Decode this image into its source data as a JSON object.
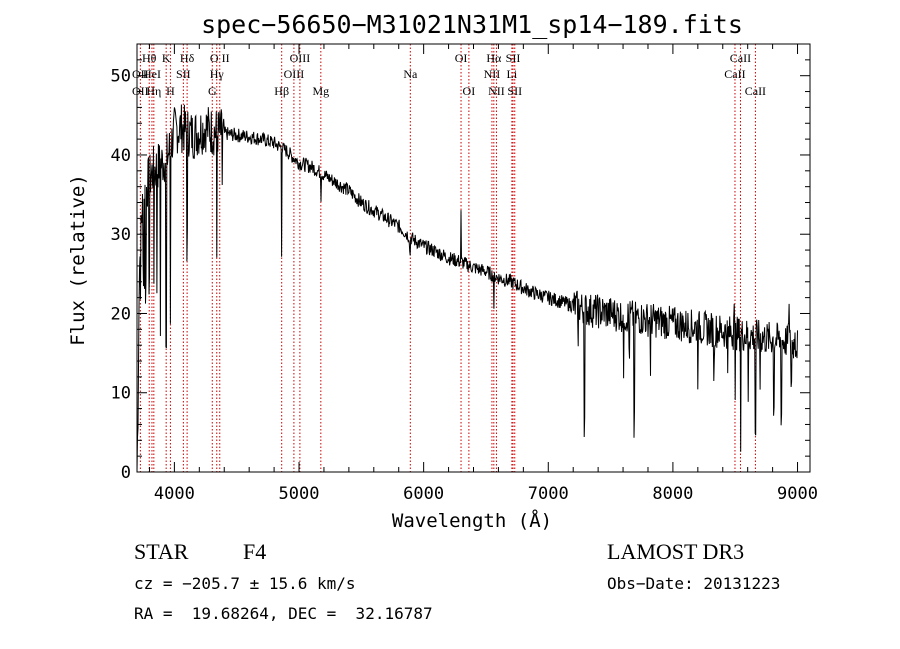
{
  "chart_data": {
    "type": "line",
    "title": "spec−56650−M31021N31M1_sp14−189.fits",
    "xlabel": "Wavelength (Å)",
    "ylabel": "Flux (relative)",
    "xlim": [
      3700,
      9100
    ],
    "ylim": [
      0,
      54
    ],
    "xticks": [
      4000,
      5000,
      6000,
      7000,
      8000,
      9000
    ],
    "yticks": [
      0,
      10,
      20,
      30,
      40,
      50
    ],
    "xtick_labels": [
      "4000",
      "5000",
      "6000",
      "7000",
      "8000",
      "9000"
    ],
    "ytick_labels": [
      "0",
      "10",
      "20",
      "30",
      "40",
      "50"
    ],
    "continuum": [
      [
        3700,
        0
      ],
      [
        3708,
        8
      ],
      [
        3715,
        20
      ],
      [
        3725,
        31
      ],
      [
        3750,
        34
      ],
      [
        3775,
        36
      ],
      [
        3800,
        37
      ],
      [
        3830,
        38
      ],
      [
        3860,
        38.5
      ],
      [
        3900,
        39
      ],
      [
        3950,
        40
      ],
      [
        4000,
        43
      ],
      [
        4050,
        43.5
      ],
      [
        4100,
        43
      ],
      [
        4150,
        42.5
      ],
      [
        4200,
        43
      ],
      [
        4250,
        43.5
      ],
      [
        4300,
        43
      ],
      [
        4400,
        42.7
      ],
      [
        4500,
        42.5
      ],
      [
        4600,
        42.3
      ],
      [
        4700,
        42
      ],
      [
        4800,
        41.5
      ],
      [
        4900,
        40.5
      ],
      [
        5000,
        39
      ],
      [
        5100,
        38.5
      ],
      [
        5200,
        37.5
      ],
      [
        5300,
        36.5
      ],
      [
        5400,
        35.5
      ],
      [
        5500,
        34
      ],
      [
        5600,
        33
      ],
      [
        5700,
        32
      ],
      [
        5800,
        31
      ],
      [
        5900,
        29.5
      ],
      [
        6000,
        28.5
      ],
      [
        6100,
        27.8
      ],
      [
        6200,
        27
      ],
      [
        6300,
        26.5
      ],
      [
        6400,
        25.8
      ],
      [
        6500,
        25.3
      ],
      [
        6600,
        24.5
      ],
      [
        6700,
        24
      ],
      [
        6800,
        23.2
      ],
      [
        6900,
        22.5
      ],
      [
        7000,
        22
      ],
      [
        7100,
        21.5
      ],
      [
        7200,
        21
      ],
      [
        7300,
        20.5
      ],
      [
        7500,
        20
      ],
      [
        7700,
        19.5
      ],
      [
        7900,
        19
      ],
      [
        8100,
        18.5
      ],
      [
        8300,
        18
      ],
      [
        8500,
        17.5
      ],
      [
        8700,
        17
      ],
      [
        8900,
        16.5
      ],
      [
        9000,
        16
      ]
    ],
    "absorption_features": [
      [
        3727,
        12
      ],
      [
        3750,
        8
      ],
      [
        3760,
        10
      ],
      [
        3770,
        12
      ],
      [
        3798,
        12
      ],
      [
        3835,
        14
      ],
      [
        3860,
        15
      ],
      [
        3889,
        20
      ],
      [
        3934,
        25
      ],
      [
        3968,
        22
      ],
      [
        4102,
        14
      ],
      [
        4340,
        16
      ],
      [
        4383,
        6
      ],
      [
        4861,
        13
      ],
      [
        5175,
        3
      ],
      [
        5890,
        2
      ],
      [
        6563,
        5
      ],
      [
        7240,
        6
      ],
      [
        7290,
        14
      ],
      [
        7605,
        10
      ],
      [
        7650,
        4
      ],
      [
        7690,
        14
      ],
      [
        7820,
        8
      ],
      [
        8200,
        6
      ],
      [
        8330,
        5
      ],
      [
        8440,
        12
      ],
      [
        8500,
        10
      ],
      [
        8545,
        14
      ],
      [
        8605,
        8
      ],
      [
        8662,
        12
      ],
      [
        8700,
        6
      ],
      [
        8810,
        8
      ],
      [
        8870,
        9
      ],
      [
        8950,
        5
      ]
    ],
    "emission_features": [
      [
        6300,
        6
      ],
      [
        8440,
        6
      ],
      [
        8490,
        4
      ],
      [
        8930,
        4
      ],
      [
        8980,
        3
      ]
    ],
    "lines": [
      {
        "label": "Hθ",
        "wavelength": 3798,
        "row": 0
      },
      {
        "label": "K",
        "wavelength": 3934,
        "row": 0
      },
      {
        "label": "Hδ",
        "wavelength": 4102,
        "row": 0
      },
      {
        "label": "O II",
        "wavelength": 4364,
        "row": 0
      },
      {
        "label": "OIII",
        "wavelength": 5007,
        "row": 0
      },
      {
        "label": "OI",
        "wavelength": 6300,
        "row": 0
      },
      {
        "label": "Hα",
        "wavelength": 6563,
        "row": 0
      },
      {
        "label": "SII",
        "wavelength": 6717,
        "row": 0
      },
      {
        "label": "CaII",
        "wavelength": 8542,
        "row": 0
      },
      {
        "label": "OII",
        "wavelength": 3727,
        "row": 1
      },
      {
        "label": "HeI",
        "wavelength": 3820,
        "row": 1
      },
      {
        "label": "SII",
        "wavelength": 4072,
        "row": 1
      },
      {
        "label": "Hγ",
        "wavelength": 4340,
        "row": 1
      },
      {
        "label": "OIII",
        "wavelength": 4959,
        "row": 1
      },
      {
        "label": "Na",
        "wavelength": 5893,
        "row": 1
      },
      {
        "label": "NII",
        "wavelength": 6548,
        "row": 1
      },
      {
        "label": "Li",
        "wavelength": 6708,
        "row": 1
      },
      {
        "label": "CaII",
        "wavelength": 8498,
        "row": 1
      },
      {
        "label": "OII",
        "wavelength": 3727,
        "row": 2
      },
      {
        "label": "Hη",
        "wavelength": 3835,
        "row": 2
      },
      {
        "label": "H",
        "wavelength": 3968,
        "row": 2
      },
      {
        "label": "G",
        "wavelength": 4304,
        "row": 2
      },
      {
        "label": "Hβ",
        "wavelength": 4861,
        "row": 2
      },
      {
        "label": "Mg",
        "wavelength": 5175,
        "row": 2
      },
      {
        "label": "OI",
        "wavelength": 6363,
        "row": 2
      },
      {
        "label": "NII",
        "wavelength": 6584,
        "row": 2
      },
      {
        "label": "SII",
        "wavelength": 6731,
        "row": 2
      },
      {
        "label": "CaII",
        "wavelength": 8662,
        "row": 2
      }
    ]
  },
  "info": {
    "class": "STAR",
    "subclass": "F4",
    "survey": "LAMOST DR3",
    "cz": "cz = −205.7 ± 15.6 km/s",
    "obs_date": "Obs−Date: 20131223",
    "coords": "RA =  19.68264, DEC =  32.16787"
  },
  "colors": {
    "spectrum": "#000000",
    "line_markers": "#cc0000",
    "text": "#000000"
  }
}
